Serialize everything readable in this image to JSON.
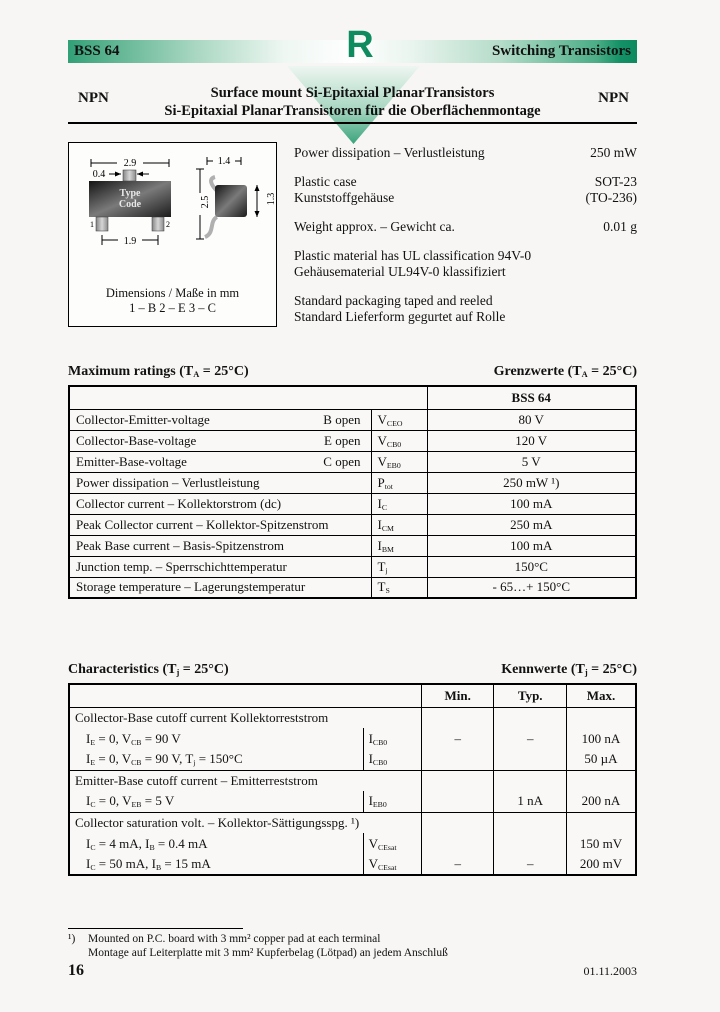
{
  "page": {
    "bg": "#f7f6f4",
    "accent_green": "#0e8c60",
    "bar_gradient_left": "#31a077",
    "bar_gradient_right": "#0d8a5f",
    "page_number": "16",
    "date": "01.11.2003"
  },
  "header": {
    "part_number": "BSS 64",
    "category": "Switching Transistors",
    "logo_letter": "R",
    "polarity_left": "NPN",
    "polarity_right": "NPN",
    "title_en": "Surface mount Si-Epitaxial PlanarTransistors",
    "title_de": "Si-Epitaxial PlanarTransistoren für die Oberflächenmontage"
  },
  "package_drawing": {
    "type_code_line1": "Type",
    "type_code_line2": "Code",
    "dims": {
      "body_width": "2.9",
      "tab_width": "0.4",
      "pin_pitch": "1.9",
      "body_height": "2.5",
      "side_width": "1.4",
      "side_height": "1.3"
    },
    "pins": {
      "p1": "1",
      "p2": "2",
      "p3": "3"
    },
    "caption": "Dimensions / Maße in mm",
    "pin_map": "1 – B      2 – E      3 – C"
  },
  "features": [
    {
      "label_lines": [
        "Power dissipation – Verlustleistung"
      ],
      "value_lines": [
        "250 mW"
      ]
    },
    {
      "label_lines": [
        "Plastic case",
        "Kunststoffgehäuse"
      ],
      "value_lines": [
        "SOT-23",
        "(TO-236)"
      ]
    },
    {
      "label_lines": [
        "Weight approx. – Gewicht ca."
      ],
      "value_lines": [
        "0.01 g"
      ]
    },
    {
      "label_lines": [
        "Plastic material has UL classification 94V-0",
        "Gehäusematerial UL94V-0 klassifiziert"
      ],
      "value_lines": []
    },
    {
      "label_lines": [
        "Standard packaging taped and reeled",
        "Standard Lieferform gegurtet auf Rolle"
      ],
      "value_lines": []
    }
  ],
  "max_ratings": {
    "heading_left": [
      "Maximum ratings (T",
      {
        "sub": "A"
      },
      " = 25°C)"
    ],
    "heading_right": [
      "Grenzwerte (T",
      {
        "sub": "A"
      },
      " = 25°C)"
    ],
    "column_header": "BSS 64",
    "rows": [
      {
        "label": "Collector-Emitter-voltage",
        "open": "B open",
        "symbol": [
          "V",
          {
            "sub": "CEO"
          }
        ],
        "value": "80 V"
      },
      {
        "label": "Collector-Base-voltage",
        "open": "E open",
        "symbol": [
          "V",
          {
            "sub": "CB0"
          }
        ],
        "value": "120 V"
      },
      {
        "label": "Emitter-Base-voltage",
        "open": "C open",
        "symbol": [
          "V",
          {
            "sub": "EB0"
          }
        ],
        "value": "5 V"
      },
      {
        "label": "Power dissipation – Verlustleistung",
        "open": "",
        "symbol": [
          "P",
          {
            "sub": "tot"
          }
        ],
        "value": "250 mW ¹)"
      },
      {
        "label": "Collector current – Kollektorstrom (dc)",
        "open": "",
        "symbol": [
          "I",
          {
            "sub": "C"
          }
        ],
        "value": "100 mA"
      },
      {
        "label": "Peak Collector current – Kollektor-Spitzenstrom",
        "open": "",
        "symbol": [
          "I",
          {
            "sub": "CM"
          }
        ],
        "value": "250 mA"
      },
      {
        "label": "Peak Base current – Basis-Spitzenstrom",
        "open": "",
        "symbol": [
          "I",
          {
            "sub": "BM"
          }
        ],
        "value": "100 mA"
      },
      {
        "label": "Junction temp. – Sperrschichttemperatur",
        "open": "",
        "symbol": [
          "T",
          {
            "sub": "j"
          }
        ],
        "value": "150°C"
      },
      {
        "label": "Storage temperature – Lagerungstemperatur",
        "open": "",
        "symbol": [
          "T",
          {
            "sub": "S"
          }
        ],
        "value": "- 65…+ 150°C"
      }
    ]
  },
  "characteristics": {
    "heading_left": [
      "Characteristics (T",
      {
        "sub": "j"
      },
      " = 25°C)"
    ],
    "heading_right": [
      "Kennwerte (T",
      {
        "sub": "j"
      },
      " = 25°C)"
    ],
    "columns": [
      "Min.",
      "Typ.",
      "Max."
    ],
    "groups": [
      {
        "title": [
          "Collector-Base cutoff current   Kollektorreststrom"
        ],
        "rows": [
          {
            "condition": [
              "I",
              {
                "sub": "E"
              },
              " = 0, V",
              {
                "sub": "CB"
              },
              " = 90 V"
            ],
            "symbol": [
              "I",
              {
                "sub": "CB0"
              }
            ],
            "min": "–",
            "typ": "–",
            "max": "100 nA"
          },
          {
            "condition": [
              "I",
              {
                "sub": "E"
              },
              " = 0, V",
              {
                "sub": "CB"
              },
              " = 90 V, T",
              {
                "sub": "j"
              },
              " = 150°C"
            ],
            "symbol": [
              "I",
              {
                "sub": "CB0"
              }
            ],
            "min": "",
            "typ": "",
            "max": "50 µA"
          }
        ]
      },
      {
        "title": [
          "Emitter-Base cutoff current – Emitterreststrom"
        ],
        "rows": [
          {
            "condition": [
              "I",
              {
                "sub": "C"
              },
              " = 0, V",
              {
                "sub": "EB"
              },
              " = 5 V"
            ],
            "symbol": [
              "I",
              {
                "sub": "EB0"
              }
            ],
            "min": "",
            "typ": "1 nA",
            "max": "200 nA"
          }
        ]
      },
      {
        "title": [
          "Collector saturation volt. – Kollektor-Sättigungsspg. ¹)"
        ],
        "rows": [
          {
            "condition": [
              "I",
              {
                "sub": "C"
              },
              " = 4 mA, I",
              {
                "sub": "B"
              },
              " = 0.4 mA"
            ],
            "symbol": [
              "V",
              {
                "sub": "CEsat"
              }
            ],
            "min": "",
            "typ": "",
            "max": "150 mV"
          },
          {
            "condition": [
              "I",
              {
                "sub": "C"
              },
              " = 50 mA, I",
              {
                "sub": "B"
              },
              " = 15 mA"
            ],
            "symbol": [
              "V",
              {
                "sub": "CEsat"
              }
            ],
            "min": "–",
            "typ": "–",
            "max": "200 mV"
          }
        ]
      }
    ]
  },
  "footnote": {
    "marker": "¹)",
    "line_en": "Mounted on P.C. board with 3 mm² copper pad at each terminal",
    "line_de": "Montage auf Leiterplatte mit 3 mm² Kupferbelag (Lötpad) an jedem Anschluß"
  }
}
